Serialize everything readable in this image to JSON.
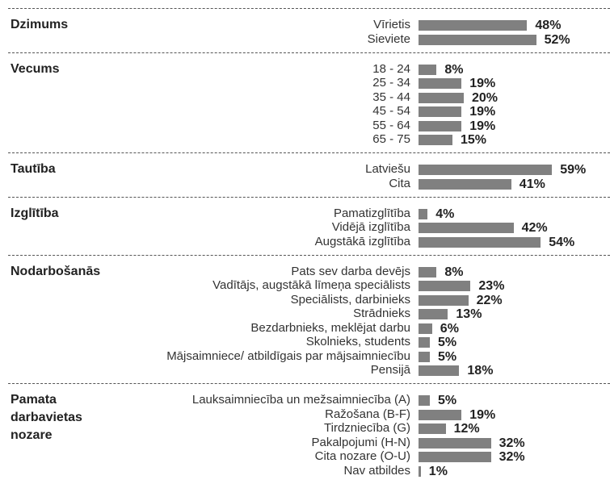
{
  "chart_data": [
    {
      "type": "bar",
      "title": "Dzimums",
      "categories": [
        "Vīrietis",
        "Sieviete"
      ],
      "values": [
        48,
        52
      ],
      "value_labels": [
        "48%",
        "52%"
      ],
      "xlim": [
        0,
        100
      ],
      "color": "#808080"
    },
    {
      "type": "bar",
      "title": "Vecums",
      "categories": [
        "18 - 24",
        "25 - 34",
        "35 - 44",
        "45 - 54",
        "55 - 64",
        "65 - 75"
      ],
      "values": [
        8,
        19,
        20,
        19,
        19,
        15
      ],
      "value_labels": [
        "8%",
        "19%",
        "20%",
        "19%",
        "19%",
        "15%"
      ],
      "xlim": [
        0,
        100
      ],
      "color": "#808080"
    },
    {
      "type": "bar",
      "title": "Tautība",
      "categories": [
        "Latviešu",
        "Cita"
      ],
      "values": [
        59,
        41
      ],
      "value_labels": [
        "59%",
        "41%"
      ],
      "xlim": [
        0,
        100
      ],
      "color": "#808080"
    },
    {
      "type": "bar",
      "title": "Izglītība",
      "categories": [
        "Pamatizglītība",
        "Vidējā izglītība",
        "Augstākā izglītība"
      ],
      "values": [
        4,
        42,
        54
      ],
      "value_labels": [
        "4%",
        "42%",
        "54%"
      ],
      "xlim": [
        0,
        100
      ],
      "color": "#808080"
    },
    {
      "type": "bar",
      "title": "Nodarbošanās",
      "categories": [
        "Pats sev darba devējs",
        "Vadītājs, augstākā līmeņa speciālists",
        "Speciālists, darbinieks",
        "Strādnieks",
        "Bezdarbnieks, meklējat darbu",
        "Skolnieks, students",
        "Mājsaimniece/ atbildīgais par mājsaimniecību",
        "Pensijā"
      ],
      "values": [
        8,
        23,
        22,
        13,
        6,
        5,
        5,
        18
      ],
      "value_labels": [
        "8%",
        "23%",
        "22%",
        "13%",
        "6%",
        "5%",
        "5%",
        "18%"
      ],
      "xlim": [
        0,
        100
      ],
      "color": "#808080"
    },
    {
      "type": "bar",
      "title": "Pamata darbavietas nozare",
      "categories": [
        "Lauksaimniecība un mežsaimniecība (A)",
        "Ražošana (B-F)",
        "Tirdzniecība (G)",
        "Pakalpojumi (H-N)",
        "Cita nozare (O-U)",
        "Nav atbildes"
      ],
      "values": [
        5,
        19,
        12,
        32,
        32,
        1
      ],
      "value_labels": [
        "5%",
        "19%",
        "12%",
        "32%",
        "32%",
        "1%"
      ],
      "xlim": [
        0,
        100
      ],
      "color": "#808080"
    }
  ]
}
